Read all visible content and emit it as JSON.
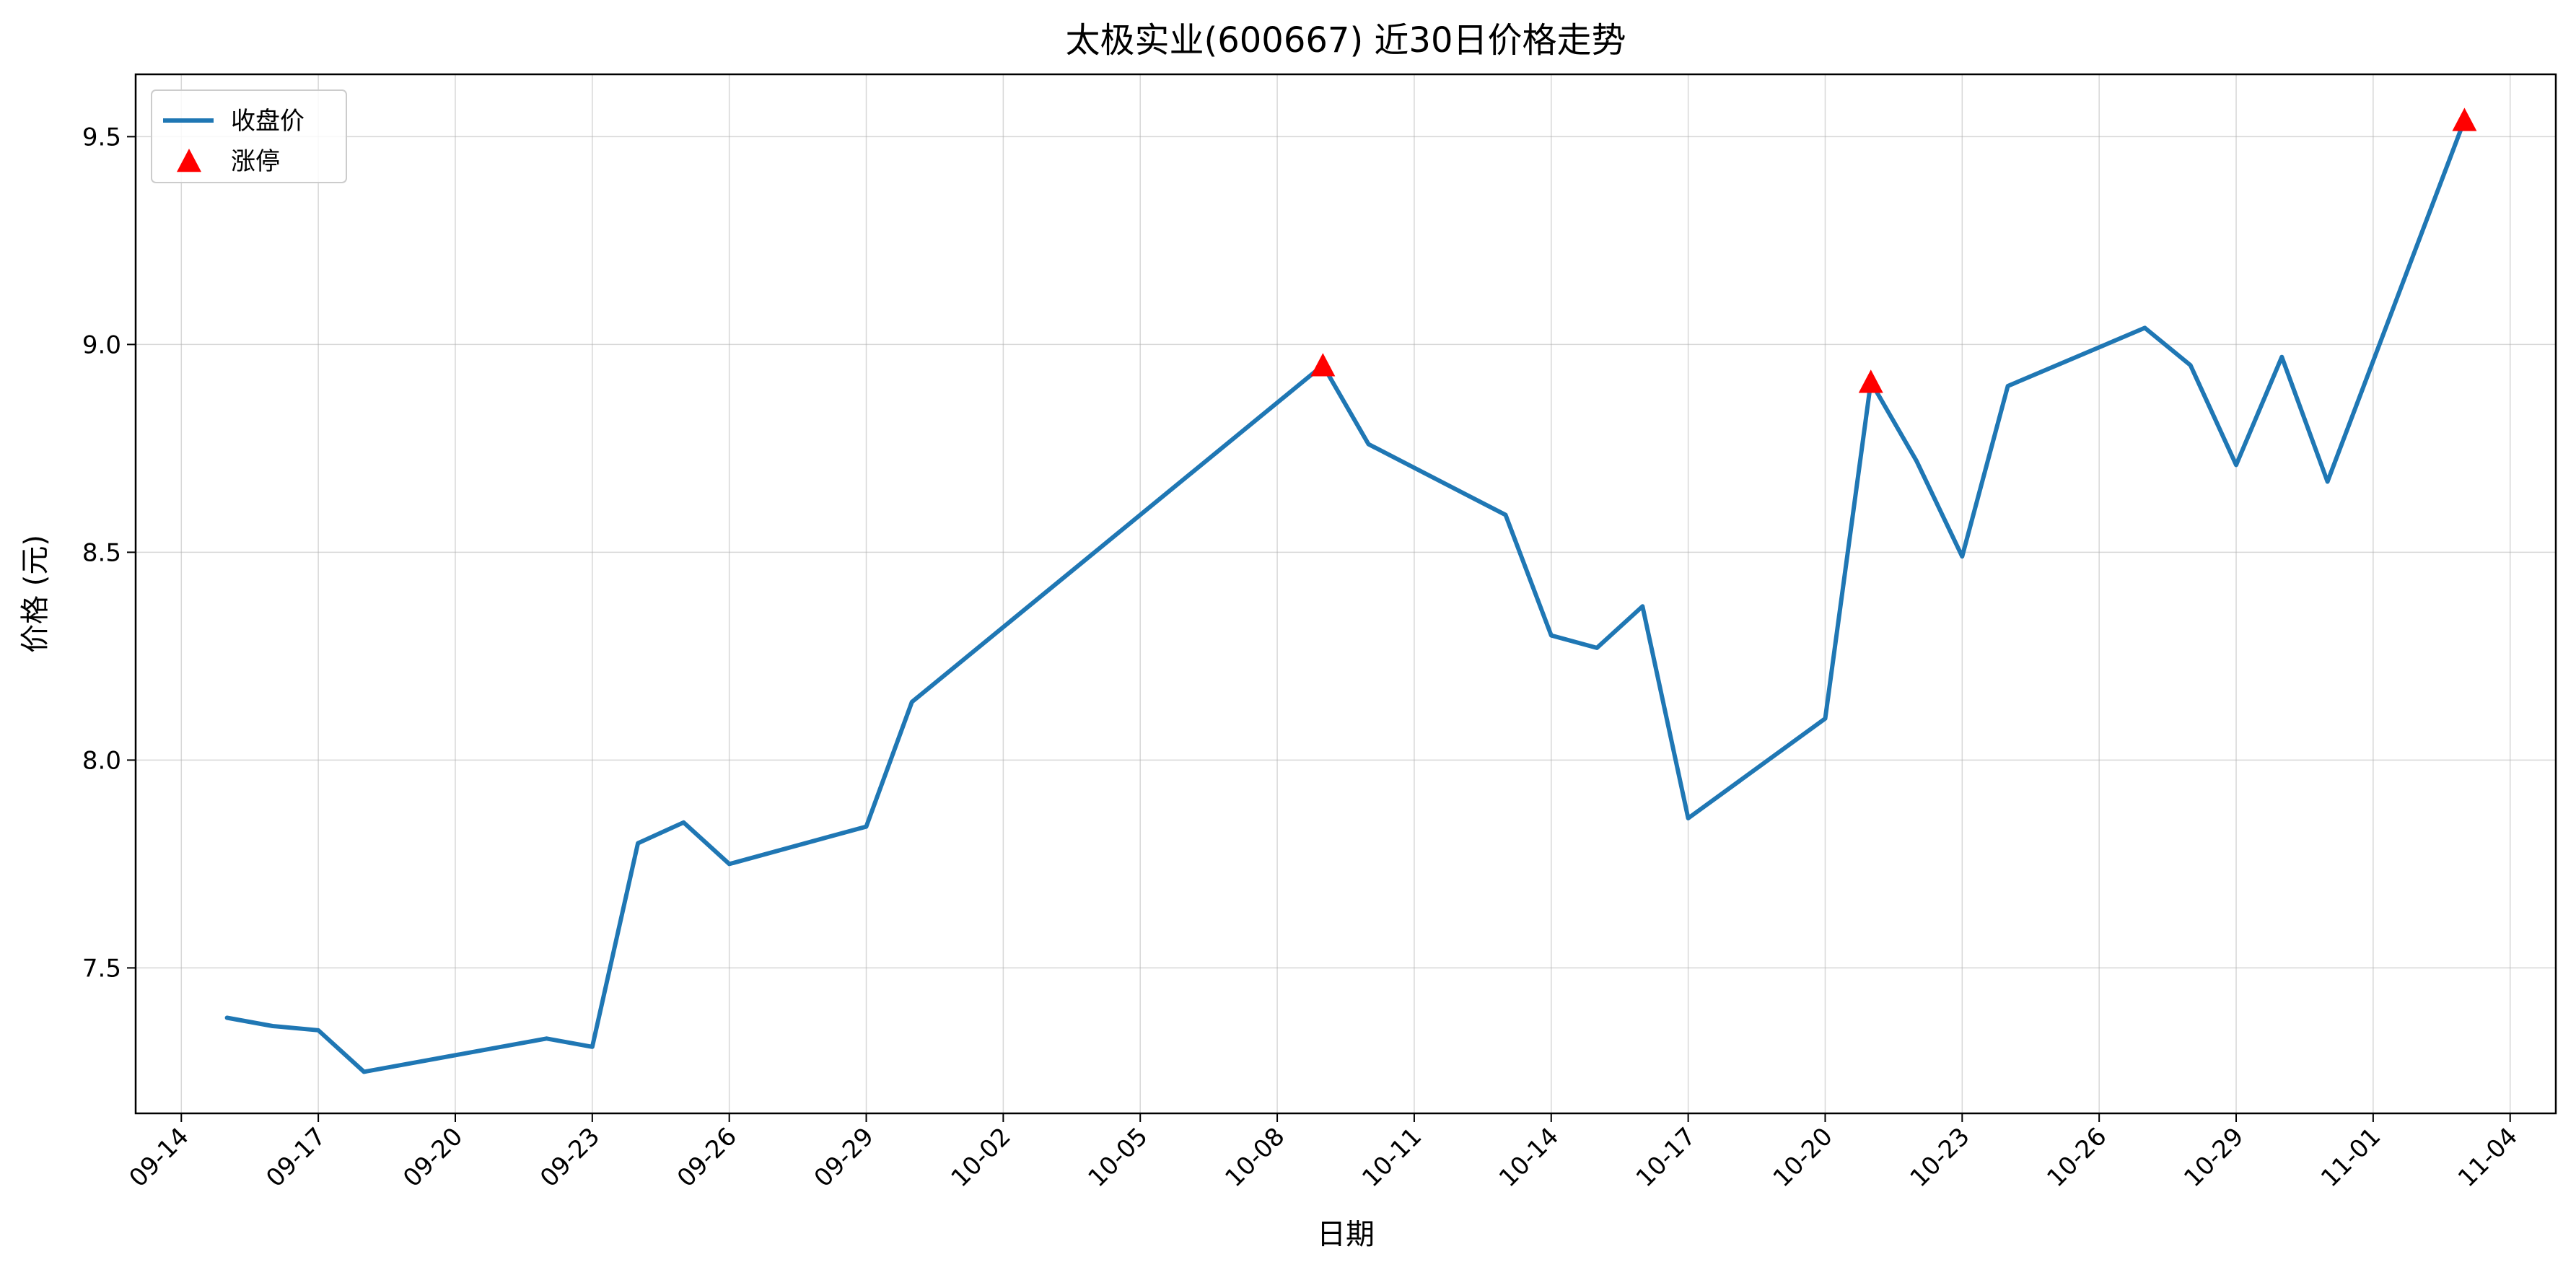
{
  "chart_data": {
    "type": "line",
    "title": "太极实业(600667) 近30日价格走势",
    "xlabel": "日期",
    "ylabel": "价格 (元)",
    "ylim": [
      7.15,
      9.65
    ],
    "xlim": [
      "2024-09-13",
      "2024-11-05"
    ],
    "grid": true,
    "legend_position": "top-left",
    "x_ticks": [
      "09-14",
      "09-17",
      "09-20",
      "09-23",
      "09-26",
      "09-29",
      "10-02",
      "10-05",
      "10-08",
      "10-11",
      "10-14",
      "10-17",
      "10-20",
      "10-23",
      "10-26",
      "10-29",
      "11-01",
      "11-04"
    ],
    "x_tick_dates": [
      "2024-09-14",
      "2024-09-17",
      "2024-09-20",
      "2024-09-23",
      "2024-09-26",
      "2024-09-29",
      "2024-10-02",
      "2024-10-05",
      "2024-10-08",
      "2024-10-11",
      "2024-10-14",
      "2024-10-17",
      "2024-10-20",
      "2024-10-23",
      "2024-10-26",
      "2024-10-29",
      "2024-11-01",
      "2024-11-04"
    ],
    "y_ticks": [
      7.5,
      8.0,
      8.5,
      9.0,
      9.5
    ],
    "y_tick_labels": [
      "7.5",
      "8.0",
      "8.5",
      "9.0",
      "9.5"
    ],
    "series": [
      {
        "name": "收盘价",
        "kind": "line",
        "color": "#1f77b4",
        "x": [
          "2024-09-15",
          "2024-09-16",
          "2024-09-17",
          "2024-09-18",
          "2024-09-22",
          "2024-09-23",
          "2024-09-24",
          "2024-09-25",
          "2024-09-26",
          "2024-09-29",
          "2024-09-30",
          "2024-10-09",
          "2024-10-10",
          "2024-10-13",
          "2024-10-14",
          "2024-10-15",
          "2024-10-16",
          "2024-10-17",
          "2024-10-20",
          "2024-10-21",
          "2024-10-22",
          "2024-10-23",
          "2024-10-24",
          "2024-10-27",
          "2024-10-28",
          "2024-10-29",
          "2024-10-30",
          "2024-10-31",
          "2024-11-03"
        ],
        "y": [
          7.38,
          7.36,
          7.35,
          7.25,
          7.33,
          7.31,
          7.8,
          7.85,
          7.75,
          7.84,
          8.14,
          8.95,
          8.76,
          8.59,
          8.3,
          8.27,
          8.37,
          7.86,
          8.1,
          8.91,
          8.72,
          8.49,
          8.9,
          9.04,
          8.95,
          8.71,
          8.97,
          8.67,
          9.54
        ]
      },
      {
        "name": "涨停",
        "kind": "scatter",
        "marker": "triangle",
        "color": "#ff0000",
        "x": [
          "2024-10-09",
          "2024-10-21",
          "2024-11-03"
        ],
        "y": [
          8.95,
          8.91,
          9.54
        ]
      }
    ]
  }
}
